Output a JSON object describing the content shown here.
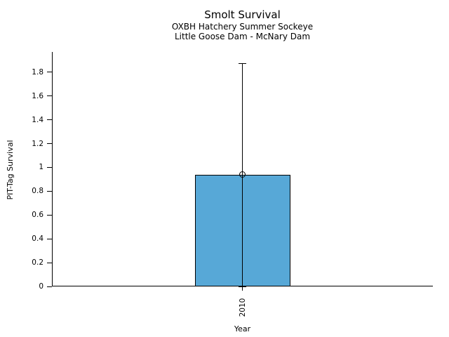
{
  "chart_data": {
    "type": "bar",
    "title": "Smolt Survival",
    "subtitle1": "OXBH Hatchery Summer Sockeye",
    "subtitle2": "Little Goose Dam - McNary Dam",
    "xlabel": "Year",
    "ylabel": "PIT-Tag Survival",
    "categories": [
      "2010"
    ],
    "values": [
      0.94
    ],
    "error_upper": [
      1.87
    ],
    "error_lower": [
      0.0
    ],
    "marker_style": "open-circle",
    "ylim": [
      0,
      1.97
    ],
    "yticks": [
      0,
      0.2,
      0.4,
      0.6,
      0.8,
      1,
      1.2,
      1.4,
      1.6,
      1.8
    ],
    "ytick_labels": [
      "0",
      "0.2",
      "0.4",
      "0.6",
      "0.8",
      "1",
      "1.2",
      "1.4",
      "1.6",
      "1.8"
    ],
    "bar_color": "#57A8D7",
    "bar_edge_color": "#000000",
    "axis_color": "#000000",
    "grid": false,
    "legend": "none"
  }
}
